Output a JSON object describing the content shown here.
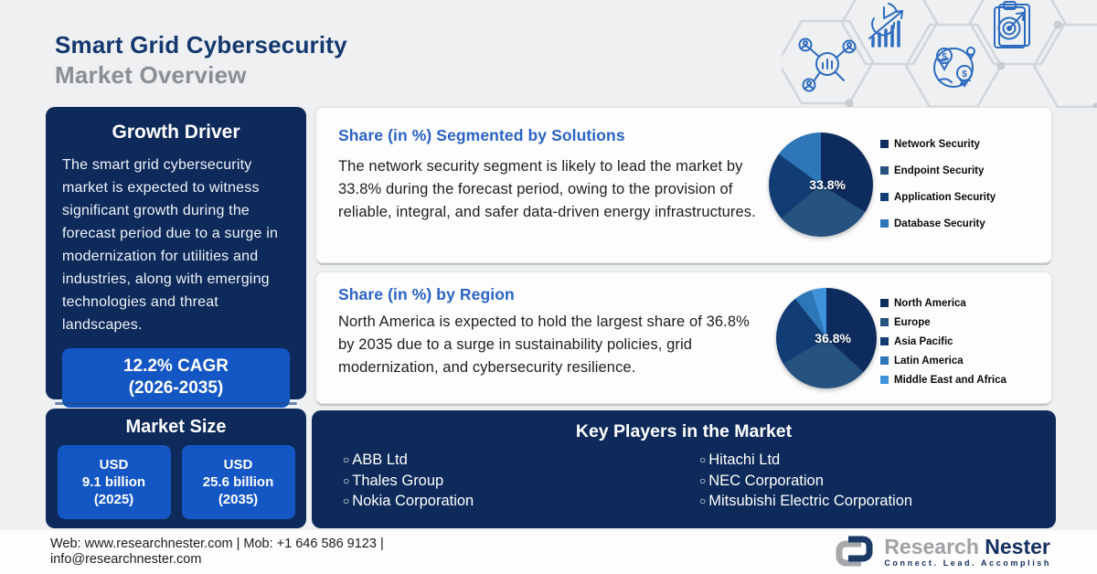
{
  "header": {
    "title_line1": "Smart Grid Cybersecurity",
    "title_line2": "Market Overview"
  },
  "growth_driver": {
    "title": "Growth Driver",
    "body": "The smart grid cybersecurity market is expected to witness significant growth during the forecast period due to a surge in modernization for utilities and industries, along with emerging technologies and threat landscapes.",
    "cagr_line1": "12.2% CAGR",
    "cagr_line2": "(2026-2035)"
  },
  "market_size": {
    "title": "Market Size",
    "boxes": [
      {
        "line1": "USD",
        "line2": "9.1 billion",
        "line3": "(2025)"
      },
      {
        "line1": "USD",
        "line2": "25.6 billion",
        "line3": "(2035)"
      }
    ]
  },
  "solutions_card": {
    "title": "Share (in %) Segmented by Solutions",
    "body": "The network security segment is likely to lead the market by 33.8% during the forecast period, owing to the provision of reliable, integral, and safer data-driven energy infrastructures."
  },
  "region_card": {
    "title": "Share (in %) by Region",
    "body": "North America is expected to hold the largest share of 36.8% by 2035 due to a surge in sustainability policies, grid modernization, and cybersecurity resilience."
  },
  "key_players": {
    "title": "Key Players in the Market",
    "bullet": "○",
    "column1": [
      "ABB Ltd",
      "Thales Group",
      "Nokia Corporation"
    ],
    "column2": [
      "Hitachi Ltd",
      "NEC Corporation",
      "Mitsubishi Electric Corporation"
    ]
  },
  "footer": {
    "contact_line1": "Web: www.researchnester.com | Mob: +1 646 586 9123 |",
    "contact_line2": "info@researchnester.com",
    "brand_name_gray": "Research",
    "brand_name_navy": "Nester",
    "tagline": "Connect. Lead. Accomplish"
  },
  "icons": {
    "hex_icons": [
      "market-research-icon",
      "growth-chart-icon",
      "global-market-icon",
      "target-clipboard-icon"
    ]
  },
  "colors": {
    "background": "#eef0f1",
    "navy_panel": "#0e2a5a",
    "bright_blue": "#1456c4",
    "heading_blue": "#2a63c5",
    "title_navy": "#14386e",
    "title_gray": "#8b8e93",
    "icon_blue": "#2e6cc0"
  },
  "chart_data": [
    {
      "type": "pie",
      "title": "Share (in %) Segmented by Solutions",
      "labels": [
        "Network Security",
        "Endpoint Security",
        "Application Security",
        "Database Security"
      ],
      "values": [
        33.8,
        30.0,
        21.2,
        15.0
      ],
      "colors": [
        "#0e2b5e",
        "#26527f",
        "#123c74",
        "#2d76b8"
      ],
      "highlight_label": "33.8%",
      "legend_position": "right",
      "note": "Only the 33.8% Network Security share is labeled; other values estimated from slice angles."
    },
    {
      "type": "pie",
      "title": "Share (in %) by Region",
      "labels": [
        "North America",
        "Europe",
        "Asia Pacific",
        "Latin America",
        "Middle East and Africa"
      ],
      "values": [
        36.8,
        29.7,
        22.8,
        6.0,
        4.7
      ],
      "colors": [
        "#0e2b5e",
        "#26527f",
        "#123c74",
        "#2d76b8",
        "#3f93dc"
      ],
      "highlight_label": "36.8%",
      "legend_position": "right",
      "note": "Only the 36.8% North America share is labeled; other values estimated from slice angles."
    }
  ]
}
